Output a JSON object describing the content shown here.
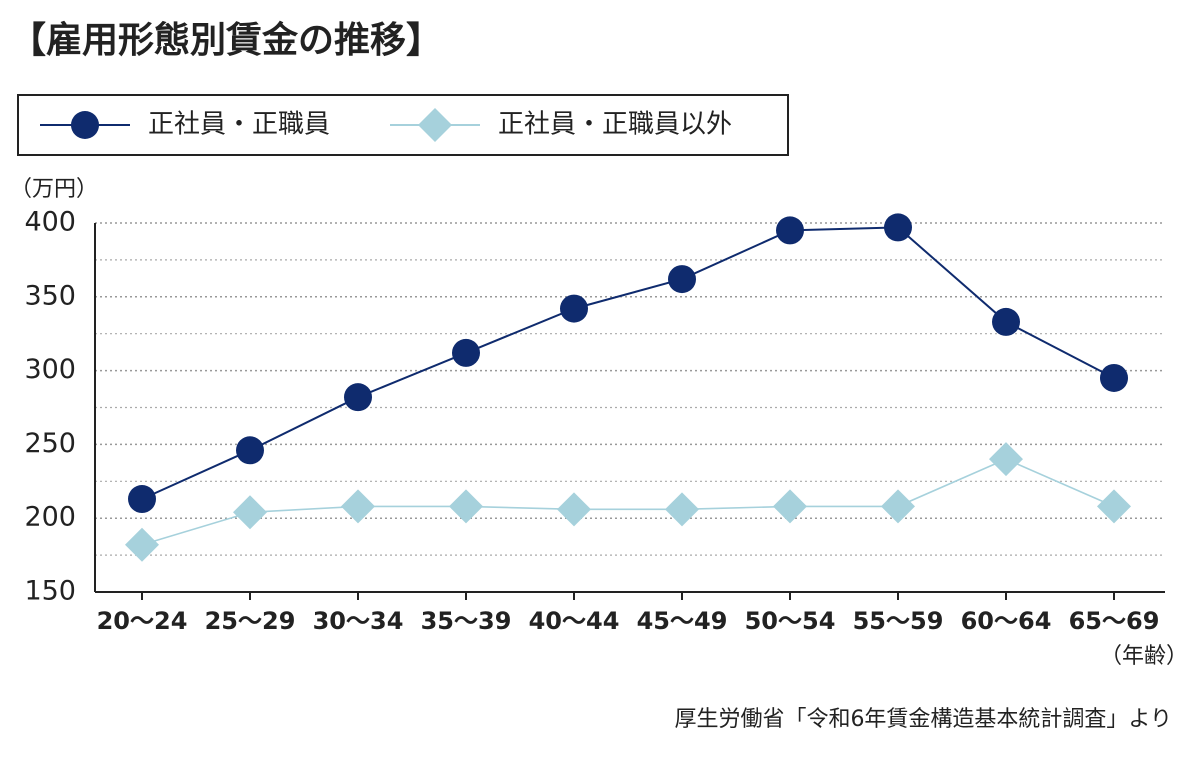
{
  "chart_data": {
    "type": "line",
    "title": "【雇用形態別賃金の推移】",
    "y_label": "（万円）",
    "x_label": "（年齢）",
    "source": "厚生労働省「令和6年賃金構造基本統計調査」より",
    "categories": [
      "20～24",
      "25～29",
      "30～34",
      "35～39",
      "40～44",
      "45～49",
      "50～54",
      "55～59",
      "60～64",
      "65～69"
    ],
    "series": [
      {
        "name": "正社員・正職員",
        "color": "#0f2b6e",
        "marker": "circle",
        "values": [
          213,
          246,
          282,
          312,
          342,
          362,
          395,
          397,
          333,
          295
        ]
      },
      {
        "name": "正社員・正職員以外",
        "color": "#a6d1dc",
        "marker": "diamond",
        "values": [
          182,
          204,
          208,
          208,
          206,
          206,
          208,
          208,
          240,
          208
        ]
      }
    ],
    "ylim": [
      150,
      400
    ],
    "yticks": [
      150,
      200,
      250,
      300,
      350,
      400
    ],
    "grid": true
  }
}
